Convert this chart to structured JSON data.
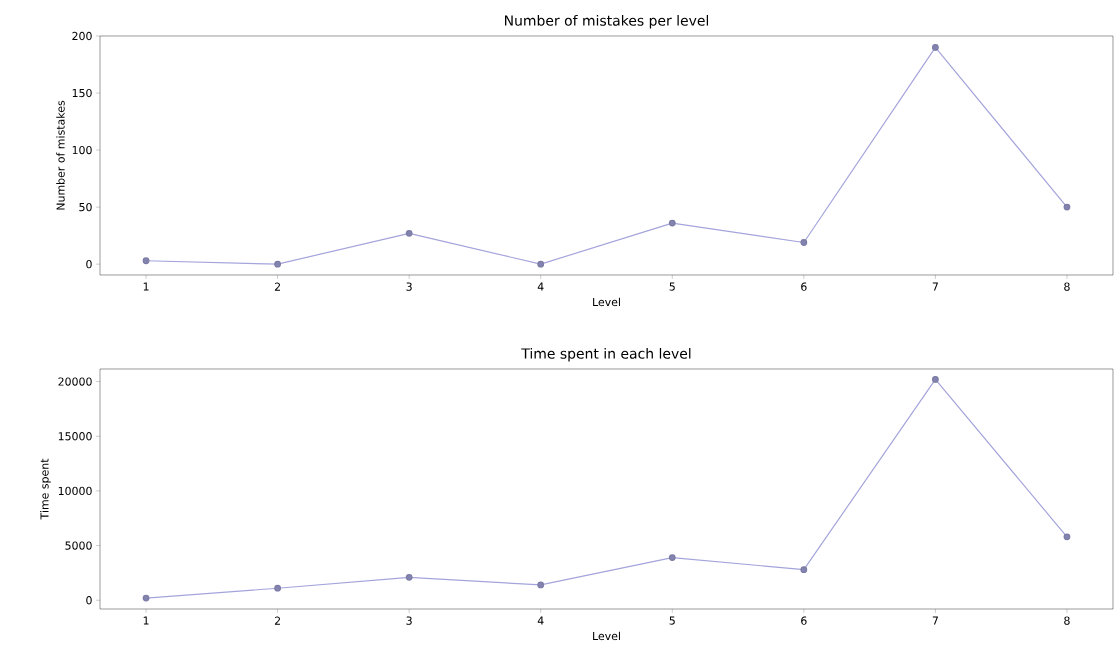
{
  "chart_data": [
    {
      "type": "line",
      "title": "Number of mistakes per level",
      "xlabel": "Level",
      "ylabel": "Number of mistakes",
      "x": [
        1,
        2,
        3,
        4,
        5,
        6,
        7,
        8
      ],
      "values": [
        3,
        0,
        27,
        0,
        36,
        19,
        190,
        50
      ],
      "color": "#a4a4dc",
      "marker": "circle",
      "line_style": "solid",
      "xlim": [
        0.65,
        8.35
      ],
      "ylim": [
        -9.5,
        200
      ],
      "xticks": [
        1,
        2,
        3,
        4,
        5,
        6,
        7,
        8
      ],
      "yticks": [
        0,
        50,
        100,
        150,
        200
      ]
    },
    {
      "type": "line",
      "title": "Time spent in each level",
      "xlabel": "Level",
      "ylabel": "Time spent",
      "x": [
        1,
        2,
        3,
        4,
        5,
        6,
        7,
        8
      ],
      "values": [
        200,
        1100,
        2100,
        1400,
        3900,
        2800,
        20200,
        5800
      ],
      "color": "#a4a4dc",
      "marker": "circle",
      "line_style": "solid",
      "xlim": [
        0.65,
        8.35
      ],
      "ylim": [
        -800,
        21150
      ],
      "xticks": [
        1,
        2,
        3,
        4,
        5,
        6,
        7,
        8
      ],
      "yticks": [
        0,
        5000,
        10000,
        15000,
        20000
      ]
    }
  ]
}
